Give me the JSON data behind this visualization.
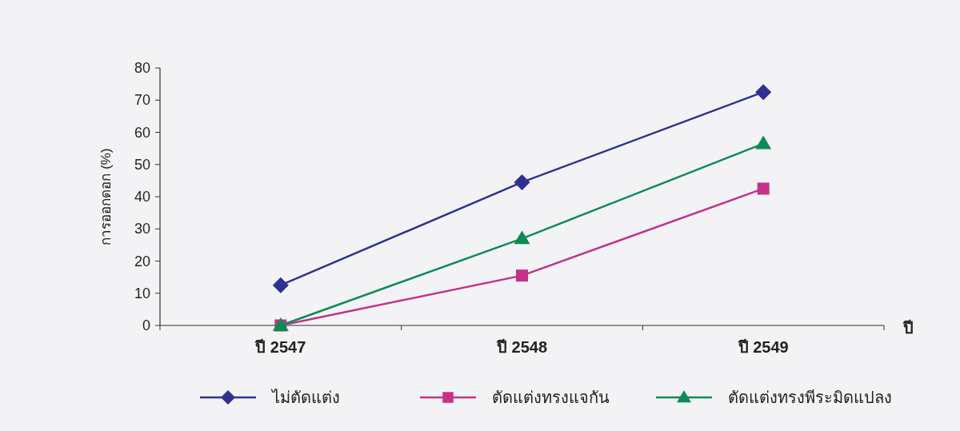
{
  "chart_data": {
    "type": "line",
    "xlabel": "ปี",
    "ylabel": "การออกดอก (%)",
    "categories": [
      "ปี 2547",
      "ปี 2548",
      "ปี 2549"
    ],
    "series": [
      {
        "name": "ไม่ตัดแต่ง",
        "color": "#2e3192",
        "marker": "diamond",
        "values": [
          12.5,
          44.5,
          72.5
        ]
      },
      {
        "name": "ตัดแต่งทรงแจกัน",
        "color": "#c4318a",
        "marker": "square",
        "values": [
          0,
          15.5,
          42.5
        ]
      },
      {
        "name": "ตัดแต่งทรงพีระมิดแปลง",
        "color": "#0e8a55",
        "marker": "triangle",
        "values": [
          0,
          27,
          56.5
        ]
      }
    ],
    "ylim": [
      0,
      80
    ],
    "yticks": [
      0,
      10,
      20,
      30,
      40,
      50,
      60,
      70,
      80
    ],
    "grid": false,
    "legend": "bottom"
  }
}
